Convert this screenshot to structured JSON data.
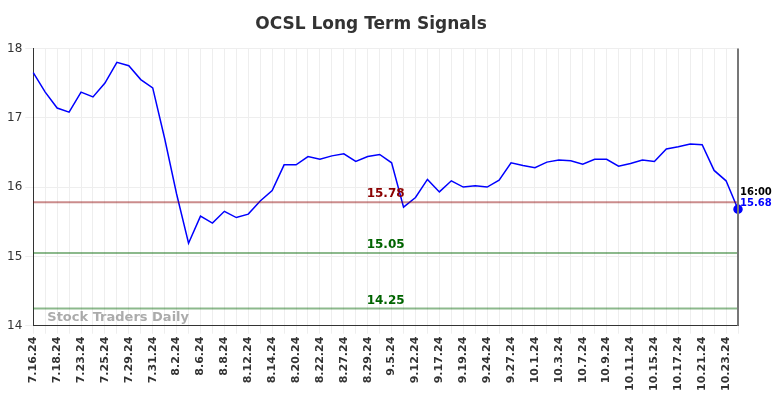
{
  "chart_data": {
    "type": "line",
    "title": "OCSL Long Term Signals",
    "categories": [
      "7.16.24",
      null,
      "7.18.24",
      null,
      "7.23.24",
      null,
      "7.25.24",
      null,
      "7.29.24",
      null,
      "7.31.24",
      null,
      "8.2.24",
      null,
      "8.6.24",
      null,
      "8.8.24",
      null,
      "8.12.24",
      null,
      "8.14.24",
      null,
      "8.20.24",
      null,
      "8.22.24",
      null,
      "8.27.24",
      null,
      "8.29.24",
      null,
      "9.5.24",
      null,
      "9.12.24",
      null,
      "9.17.24",
      null,
      "9.19.24",
      null,
      "9.24.24",
      null,
      "9.27.24",
      null,
      "10.1.24",
      null,
      "10.3.24",
      null,
      "10.7.24",
      null,
      "10.9.24",
      null,
      "10.11.24",
      null,
      "10.15.24",
      null,
      "10.17.24",
      null,
      "10.21.24",
      null,
      "10.23.24",
      null
    ],
    "values": [
      17.65,
      17.37,
      17.14,
      17.08,
      17.37,
      17.3,
      17.5,
      17.8,
      17.75,
      17.55,
      17.43,
      16.7,
      15.9,
      15.19,
      15.58,
      15.48,
      15.65,
      15.56,
      15.61,
      15.8,
      15.95,
      16.32,
      16.32,
      16.44,
      16.4,
      16.45,
      16.48,
      16.37,
      16.44,
      16.47,
      16.35,
      15.71,
      15.85,
      16.11,
      15.93,
      16.09,
      16.0,
      16.02,
      16.0,
      16.1,
      16.35,
      16.31,
      16.28,
      16.36,
      16.39,
      16.38,
      16.33,
      16.4,
      16.4,
      16.3,
      16.34,
      16.39,
      16.37,
      16.55,
      16.58,
      16.62,
      16.61,
      16.24,
      16.09,
      15.68
    ],
    "color": "#0000ff",
    "ylim": [
      14,
      18
    ],
    "yticks": [
      14,
      15,
      16,
      17,
      18
    ],
    "grid": true,
    "horizontal_lines": [
      {
        "value": 15.78,
        "label": "15.78",
        "color": "#8b0000"
      },
      {
        "value": 15.05,
        "label": "15.05",
        "color": "#006400"
      },
      {
        "value": 14.25,
        "label": "14.25",
        "color": "#006400"
      }
    ],
    "end_time": "16:00",
    "end_value_label": "15.68",
    "watermark": "Stock Traders Daily"
  }
}
